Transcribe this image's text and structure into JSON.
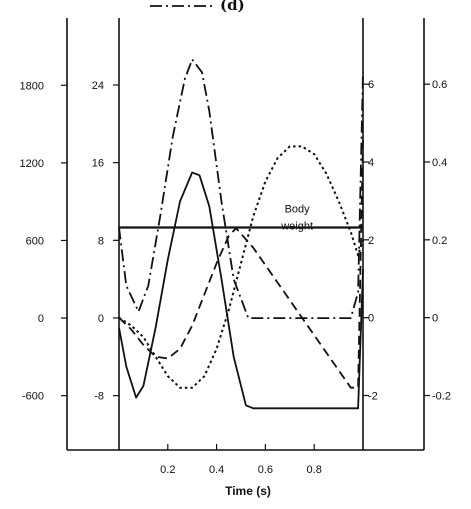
{
  "chart_data": {
    "type": "line",
    "title": "",
    "xlabel": "Time (s)",
    "xlim": [
      0,
      1.0
    ],
    "xticks": [
      0.2,
      0.4,
      0.6,
      0.8
    ],
    "grid": false,
    "axes": [
      {
        "id": "y1",
        "ticks": [
          -600,
          0,
          600,
          1200,
          1800
        ],
        "ylim": [
          -1020,
          2320
        ]
      },
      {
        "id": "y2",
        "ticks": [
          -8,
          0,
          8,
          16,
          24
        ],
        "ylim": [
          -13.6,
          30.9
        ]
      },
      {
        "id": "y3",
        "ticks": [
          -2,
          0,
          2,
          4,
          6
        ],
        "ylim": [
          -3.4,
          7.7
        ]
      },
      {
        "id": "y4",
        "ticks": [
          -0.2,
          0,
          0.2,
          0.4,
          0.6
        ],
        "ylim": [
          -0.34,
          0.77
        ]
      }
    ],
    "legend": {
      "placement": "top",
      "entries": [
        {
          "label": "(d)",
          "style": "dash-dot"
        }
      ]
    },
    "annotations": [
      {
        "lines": [
          "Body",
          "weight"
        ],
        "x": 0.73,
        "y": 8.4,
        "axis": "y2"
      }
    ],
    "series": [
      {
        "axis": "y1",
        "style": "solid-thick",
        "x": [
          0,
          1.0
        ],
        "y": [
          700,
          700
        ]
      },
      {
        "axis": "y2",
        "style": "solid",
        "x": [
          0,
          0.03,
          0.07,
          0.1,
          0.15,
          0.2,
          0.25,
          0.3,
          0.33,
          0.37,
          0.42,
          0.47,
          0.52,
          0.55,
          0.98,
          1.0
        ],
        "y": [
          -1,
          -5,
          -8.2,
          -7,
          -1,
          6,
          12,
          15,
          14.7,
          11.5,
          4,
          -4,
          -9,
          -9.3,
          -9.3,
          5
        ]
      },
      {
        "axis": "y3",
        "style": "dashed",
        "x": [
          0,
          0.05,
          0.1,
          0.15,
          0.2,
          0.25,
          0.3,
          0.35,
          0.4,
          0.45,
          0.48,
          0.55,
          0.65,
          0.75,
          0.85,
          0.95,
          0.98,
          1.0
        ],
        "y": [
          0,
          -0.3,
          -0.7,
          -1.0,
          -1.05,
          -0.8,
          -0.2,
          0.6,
          1.4,
          2.1,
          2.3,
          1.8,
          0.9,
          0,
          -0.9,
          -1.8,
          -1.8,
          4.6
        ]
      },
      {
        "axis": "y4",
        "style": "dotted",
        "x": [
          0,
          0.05,
          0.1,
          0.15,
          0.2,
          0.25,
          0.3,
          0.35,
          0.4,
          0.45,
          0.5,
          0.55,
          0.6,
          0.65,
          0.7,
          0.75,
          0.8,
          0.85,
          0.9,
          0.95,
          0.98,
          1.0
        ],
        "y": [
          0,
          -0.02,
          -0.05,
          -0.1,
          -0.15,
          -0.18,
          -0.18,
          -0.15,
          -0.08,
          0.02,
          0.14,
          0.26,
          0.35,
          0.41,
          0.44,
          0.44,
          0.42,
          0.37,
          0.3,
          0.22,
          0.16,
          0.2
        ]
      },
      {
        "axis": "y1",
        "style": "dash-dot",
        "x": [
          0,
          0.03,
          0.08,
          0.12,
          0.17,
          0.22,
          0.27,
          0.3,
          0.34,
          0.37,
          0.42,
          0.47,
          0.53,
          0.6,
          0.7,
          0.8,
          0.9,
          0.95,
          0.98,
          1.0
        ],
        "y": [
          700,
          250,
          50,
          250,
          800,
          1400,
          1850,
          2000,
          1900,
          1600,
          900,
          300,
          0,
          0,
          0,
          0,
          0,
          0,
          200,
          1900
        ]
      }
    ]
  }
}
